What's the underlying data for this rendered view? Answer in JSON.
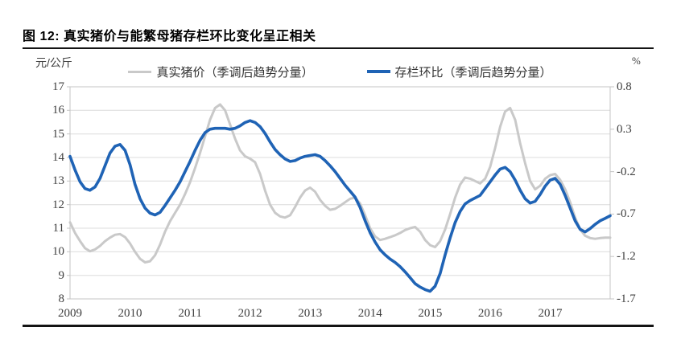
{
  "figure": {
    "title": "图 12: 真实猪价与能繁母猪存栏环比变化呈正相关"
  },
  "colors": {
    "price_series": "#C9C9C9",
    "inventory_series": "#1F63B5",
    "grid": "#DCDCDC",
    "axis": "#C4C4C4",
    "tick_text": "#404040",
    "rule": "#141414"
  },
  "chart_data": {
    "type": "line",
    "title": "图 12: 真实猪价与能繁母猪存栏环比变化呈正相关",
    "grid": true,
    "legend_position": "top",
    "x_axis": {
      "range": [
        2009,
        2018
      ],
      "ticks": [
        2009,
        2010,
        2011,
        2012,
        2013,
        2014,
        2015,
        2016,
        2017
      ]
    },
    "left_axis": {
      "unit": "元/公斤",
      "range": [
        8,
        17
      ],
      "ticks": [
        17,
        16,
        15,
        14,
        13,
        12,
        11,
        10,
        9,
        8
      ]
    },
    "right_axis": {
      "unit": "%",
      "range": [
        -1.7,
        0.8
      ],
      "ticks": [
        "0.8",
        "0.3",
        "-0.2",
        "-0.7",
        "-1.2",
        "-1.7"
      ]
    },
    "series": [
      {
        "id": "real-pig-price",
        "name": "真实猪价（季调后趋势分量）",
        "axis": "left",
        "color": "#C9C9C9",
        "stroke_width": 3,
        "points": [
          [
            2009.0,
            11.25
          ],
          [
            2009.083,
            10.8
          ],
          [
            2009.167,
            10.45
          ],
          [
            2009.25,
            10.15
          ],
          [
            2009.333,
            10.02
          ],
          [
            2009.417,
            10.1
          ],
          [
            2009.5,
            10.25
          ],
          [
            2009.583,
            10.45
          ],
          [
            2009.667,
            10.6
          ],
          [
            2009.75,
            10.72
          ],
          [
            2009.833,
            10.75
          ],
          [
            2009.917,
            10.62
          ],
          [
            2010.0,
            10.35
          ],
          [
            2010.083,
            10.0
          ],
          [
            2010.167,
            9.7
          ],
          [
            2010.25,
            9.55
          ],
          [
            2010.333,
            9.6
          ],
          [
            2010.417,
            9.85
          ],
          [
            2010.5,
            10.3
          ],
          [
            2010.583,
            10.85
          ],
          [
            2010.667,
            11.3
          ],
          [
            2010.75,
            11.65
          ],
          [
            2010.833,
            12.0
          ],
          [
            2010.917,
            12.45
          ],
          [
            2011.0,
            12.95
          ],
          [
            2011.083,
            13.55
          ],
          [
            2011.167,
            14.2
          ],
          [
            2011.25,
            14.9
          ],
          [
            2011.333,
            15.6
          ],
          [
            2011.417,
            16.1
          ],
          [
            2011.5,
            16.25
          ],
          [
            2011.583,
            16.0
          ],
          [
            2011.667,
            15.4
          ],
          [
            2011.75,
            14.8
          ],
          [
            2011.833,
            14.3
          ],
          [
            2011.917,
            14.05
          ],
          [
            2012.0,
            13.95
          ],
          [
            2012.083,
            13.8
          ],
          [
            2012.167,
            13.3
          ],
          [
            2012.25,
            12.6
          ],
          [
            2012.333,
            12.0
          ],
          [
            2012.417,
            11.65
          ],
          [
            2012.5,
            11.5
          ],
          [
            2012.583,
            11.45
          ],
          [
            2012.667,
            11.55
          ],
          [
            2012.75,
            11.9
          ],
          [
            2012.833,
            12.3
          ],
          [
            2012.917,
            12.6
          ],
          [
            2013.0,
            12.72
          ],
          [
            2013.083,
            12.55
          ],
          [
            2013.167,
            12.2
          ],
          [
            2013.25,
            11.95
          ],
          [
            2013.333,
            11.78
          ],
          [
            2013.417,
            11.82
          ],
          [
            2013.5,
            11.95
          ],
          [
            2013.583,
            12.1
          ],
          [
            2013.667,
            12.25
          ],
          [
            2013.75,
            12.3
          ],
          [
            2013.833,
            12.05
          ],
          [
            2013.917,
            11.55
          ],
          [
            2014.0,
            11.0
          ],
          [
            2014.083,
            10.65
          ],
          [
            2014.167,
            10.5
          ],
          [
            2014.25,
            10.55
          ],
          [
            2014.333,
            10.62
          ],
          [
            2014.417,
            10.7
          ],
          [
            2014.5,
            10.8
          ],
          [
            2014.583,
            10.92
          ],
          [
            2014.667,
            11.0
          ],
          [
            2014.75,
            11.05
          ],
          [
            2014.833,
            10.85
          ],
          [
            2014.917,
            10.5
          ],
          [
            2015.0,
            10.28
          ],
          [
            2015.083,
            10.2
          ],
          [
            2015.167,
            10.45
          ],
          [
            2015.25,
            10.95
          ],
          [
            2015.333,
            11.6
          ],
          [
            2015.417,
            12.3
          ],
          [
            2015.5,
            12.85
          ],
          [
            2015.583,
            13.15
          ],
          [
            2015.667,
            13.1
          ],
          [
            2015.75,
            13.0
          ],
          [
            2015.833,
            12.9
          ],
          [
            2015.917,
            13.1
          ],
          [
            2016.0,
            13.6
          ],
          [
            2016.083,
            14.4
          ],
          [
            2016.167,
            15.3
          ],
          [
            2016.25,
            15.95
          ],
          [
            2016.333,
            16.1
          ],
          [
            2016.417,
            15.6
          ],
          [
            2016.5,
            14.6
          ],
          [
            2016.583,
            13.75
          ],
          [
            2016.667,
            13.0
          ],
          [
            2016.75,
            12.65
          ],
          [
            2016.833,
            12.8
          ],
          [
            2016.917,
            13.1
          ],
          [
            2017.0,
            13.25
          ],
          [
            2017.083,
            13.3
          ],
          [
            2017.167,
            13.05
          ],
          [
            2017.25,
            12.65
          ],
          [
            2017.333,
            12.1
          ],
          [
            2017.417,
            11.45
          ],
          [
            2017.5,
            10.95
          ],
          [
            2017.583,
            10.68
          ],
          [
            2017.667,
            10.58
          ],
          [
            2017.75,
            10.55
          ],
          [
            2017.833,
            10.58
          ],
          [
            2017.917,
            10.6
          ],
          [
            2018.0,
            10.6
          ]
        ]
      },
      {
        "id": "inventory-mom",
        "name": "存栏环比（季调后趋势分量）",
        "axis": "right",
        "color": "#1F63B5",
        "stroke_width": 3.6,
        "points": [
          [
            2009.0,
            -0.02
          ],
          [
            2009.083,
            -0.18
          ],
          [
            2009.167,
            -0.32
          ],
          [
            2009.25,
            -0.4
          ],
          [
            2009.333,
            -0.42
          ],
          [
            2009.417,
            -0.38
          ],
          [
            2009.5,
            -0.28
          ],
          [
            2009.583,
            -0.13
          ],
          [
            2009.667,
            0.02
          ],
          [
            2009.75,
            0.1
          ],
          [
            2009.833,
            0.12
          ],
          [
            2009.917,
            0.05
          ],
          [
            2010.0,
            -0.12
          ],
          [
            2010.083,
            -0.35
          ],
          [
            2010.167,
            -0.52
          ],
          [
            2010.25,
            -0.63
          ],
          [
            2010.333,
            -0.69
          ],
          [
            2010.417,
            -0.71
          ],
          [
            2010.5,
            -0.68
          ],
          [
            2010.583,
            -0.6
          ],
          [
            2010.667,
            -0.51
          ],
          [
            2010.75,
            -0.42
          ],
          [
            2010.833,
            -0.32
          ],
          [
            2010.917,
            -0.2
          ],
          [
            2011.0,
            -0.08
          ],
          [
            2011.083,
            0.05
          ],
          [
            2011.167,
            0.17
          ],
          [
            2011.25,
            0.26
          ],
          [
            2011.333,
            0.3
          ],
          [
            2011.417,
            0.31
          ],
          [
            2011.5,
            0.31
          ],
          [
            2011.583,
            0.31
          ],
          [
            2011.667,
            0.3
          ],
          [
            2011.75,
            0.31
          ],
          [
            2011.833,
            0.34
          ],
          [
            2011.917,
            0.38
          ],
          [
            2012.0,
            0.4
          ],
          [
            2012.083,
            0.38
          ],
          [
            2012.167,
            0.33
          ],
          [
            2012.25,
            0.25
          ],
          [
            2012.333,
            0.15
          ],
          [
            2012.417,
            0.06
          ],
          [
            2012.5,
            0.0
          ],
          [
            2012.583,
            -0.05
          ],
          [
            2012.667,
            -0.08
          ],
          [
            2012.75,
            -0.07
          ],
          [
            2012.833,
            -0.04
          ],
          [
            2012.917,
            -0.02
          ],
          [
            2013.0,
            -0.01
          ],
          [
            2013.083,
            0.0
          ],
          [
            2013.167,
            -0.02
          ],
          [
            2013.25,
            -0.07
          ],
          [
            2013.333,
            -0.13
          ],
          [
            2013.417,
            -0.2
          ],
          [
            2013.5,
            -0.28
          ],
          [
            2013.583,
            -0.36
          ],
          [
            2013.667,
            -0.43
          ],
          [
            2013.75,
            -0.5
          ],
          [
            2013.833,
            -0.62
          ],
          [
            2013.917,
            -0.78
          ],
          [
            2014.0,
            -0.92
          ],
          [
            2014.083,
            -1.03
          ],
          [
            2014.167,
            -1.12
          ],
          [
            2014.25,
            -1.18
          ],
          [
            2014.333,
            -1.23
          ],
          [
            2014.417,
            -1.27
          ],
          [
            2014.5,
            -1.32
          ],
          [
            2014.583,
            -1.38
          ],
          [
            2014.667,
            -1.45
          ],
          [
            2014.75,
            -1.52
          ],
          [
            2014.833,
            -1.56
          ],
          [
            2014.917,
            -1.59
          ],
          [
            2015.0,
            -1.61
          ],
          [
            2015.083,
            -1.55
          ],
          [
            2015.167,
            -1.4
          ],
          [
            2015.25,
            -1.18
          ],
          [
            2015.333,
            -0.98
          ],
          [
            2015.417,
            -0.8
          ],
          [
            2015.5,
            -0.67
          ],
          [
            2015.583,
            -0.58
          ],
          [
            2015.667,
            -0.54
          ],
          [
            2015.75,
            -0.51
          ],
          [
            2015.833,
            -0.48
          ],
          [
            2015.917,
            -0.4
          ],
          [
            2016.0,
            -0.32
          ],
          [
            2016.083,
            -0.24
          ],
          [
            2016.167,
            -0.17
          ],
          [
            2016.25,
            -0.15
          ],
          [
            2016.333,
            -0.2
          ],
          [
            2016.417,
            -0.3
          ],
          [
            2016.5,
            -0.42
          ],
          [
            2016.583,
            -0.52
          ],
          [
            2016.667,
            -0.57
          ],
          [
            2016.75,
            -0.55
          ],
          [
            2016.833,
            -0.47
          ],
          [
            2016.917,
            -0.37
          ],
          [
            2017.0,
            -0.3
          ],
          [
            2017.083,
            -0.28
          ],
          [
            2017.167,
            -0.35
          ],
          [
            2017.25,
            -0.48
          ],
          [
            2017.333,
            -0.63
          ],
          [
            2017.417,
            -0.78
          ],
          [
            2017.5,
            -0.88
          ],
          [
            2017.583,
            -0.91
          ],
          [
            2017.667,
            -0.87
          ],
          [
            2017.75,
            -0.82
          ],
          [
            2017.833,
            -0.78
          ],
          [
            2017.917,
            -0.75
          ],
          [
            2018.0,
            -0.72
          ]
        ]
      }
    ]
  }
}
